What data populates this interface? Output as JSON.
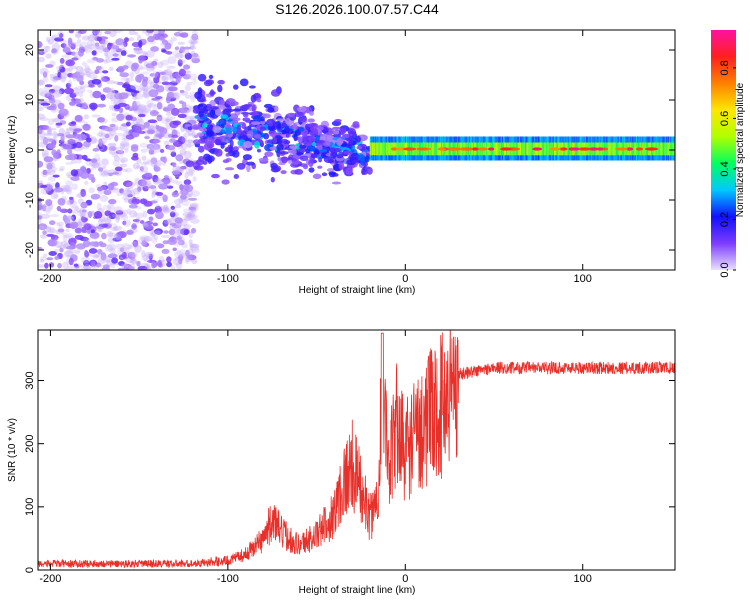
{
  "figure_title": "S126.2026.100.07.57.C44",
  "chart_data": [
    {
      "type": "heatmap",
      "panel": "spectrogram",
      "xlabel": "Height of straight line (km)",
      "ylabel": "Frequency (Hz)",
      "xlim": [
        -207,
        152
      ],
      "ylim": [
        -24,
        24
      ],
      "xticks": [
        -200,
        -100,
        0,
        100
      ],
      "yticks": [
        -20,
        -10,
        0,
        10,
        20
      ],
      "colorbar": {
        "label": "Normalized spectral amplitude",
        "range": [
          0.0,
          0.95
        ],
        "ticks": [
          0.0,
          0.2,
          0.4,
          0.6,
          0.8
        ],
        "colors": [
          "#e8e0ff",
          "#7d3cff",
          "#1010ff",
          "#00c8ff",
          "#00ff60",
          "#b0ff00",
          "#ffe600",
          "#ff8000",
          "#ff2020",
          "#ff10a0"
        ]
      },
      "regions": [
        {
          "name": "noise",
          "x": [
            -207,
            -118
          ],
          "freq_spread": 24,
          "amplitude": [
            0.02,
            0.15
          ]
        },
        {
          "name": "transition",
          "x": [
            -118,
            -20
          ],
          "freq_center_start": 6,
          "freq_center_end": -1,
          "freq_spread": 10,
          "amplitude": [
            0.05,
            0.3
          ]
        },
        {
          "name": "tone",
          "x": [
            -20,
            152
          ],
          "freq_center": 0,
          "freq_width": 1.5,
          "amplitude": [
            0.3,
            0.95
          ]
        }
      ]
    },
    {
      "type": "line",
      "panel": "snr",
      "xlabel": "Height of straight line (km)",
      "ylabel": "SNR (10 * v/v)",
      "xlim": [
        -207,
        152
      ],
      "ylim": [
        0,
        380
      ],
      "xticks": [
        -200,
        -100,
        0,
        100
      ],
      "yticks": [
        0,
        100,
        200,
        300
      ],
      "color": "#e8302a",
      "series": [
        {
          "name": "SNR",
          "x": [
            -207,
            -120,
            -100,
            -90,
            -80,
            -75,
            -70,
            -60,
            -50,
            -40,
            -35,
            -30,
            -25,
            -20,
            -15,
            -13,
            -10,
            -5,
            0,
            10,
            20,
            30,
            50,
            100,
            152
          ],
          "values": [
            10,
            10,
            15,
            25,
            50,
            80,
            60,
            40,
            55,
            90,
            140,
            165,
            130,
            80,
            120,
            375,
            140,
            230,
            190,
            230,
            260,
            310,
            320,
            320,
            320
          ]
        }
      ]
    }
  ]
}
